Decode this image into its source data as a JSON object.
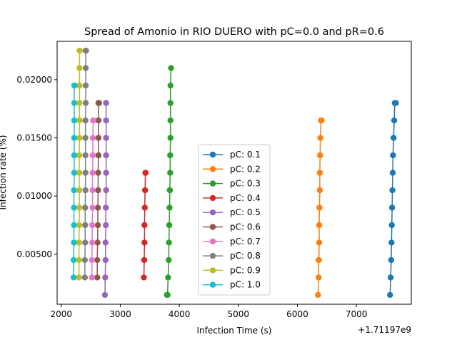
{
  "chart_data": {
    "type": "line",
    "title": "Spread of Amonio in RIO DUERO with pC=0.0 and pR=0.6",
    "xlabel": "Infection Time (s)",
    "ylabel": "Infection rate (%)",
    "x_offset_label": "+1.71197e9",
    "x_ticks": [
      "2000",
      "3000",
      "4000",
      "5000",
      "6000",
      "7000"
    ],
    "y_ticks": [
      "0.00500",
      "0.01000",
      "0.01500",
      "0.02000"
    ],
    "xlim": [
      1711971930,
      1711977930
    ],
    "ylim": [
      0.0007,
      0.0233
    ],
    "grid": false,
    "legend_position": "lower-center",
    "series": [
      {
        "name": "pC: 0.1",
        "color": "#1f77b4",
        "x": [
          1711977570,
          1711977580,
          1711977590,
          1711977595,
          1711977600,
          1711977605,
          1711977610,
          1711977615,
          1711977620,
          1711977630,
          1711977640,
          1711977650,
          1711977660,
          1711977670
        ],
        "y": [
          0.0015,
          0.003,
          0.0045,
          0.006,
          0.0075,
          0.009,
          0.0105,
          0.012,
          0.0135,
          0.015,
          0.0165,
          0.018,
          0.018,
          0.018
        ]
      },
      {
        "name": "pC: 0.2",
        "color": "#ff7f0e",
        "x": [
          1711976350,
          1711976360,
          1711976360,
          1711976365,
          1711976370,
          1711976370,
          1711976375,
          1711976380,
          1711976380,
          1711976385,
          1711976390,
          1711976400,
          1711976410
        ],
        "y": [
          0.0015,
          0.003,
          0.0045,
          0.0045,
          0.006,
          0.0075,
          0.009,
          0.0105,
          0.012,
          0.0135,
          0.015,
          0.0165,
          0.0165
        ]
      },
      {
        "name": "pC: 0.3",
        "color": "#2ca02c",
        "x": [
          1711973790,
          1711973800,
          1711973810,
          1711973820,
          1711973825,
          1711973830,
          1711973835,
          1711973840,
          1711973840,
          1711973845,
          1711973845,
          1711973850,
          1711973850,
          1711973850,
          1711973850,
          1711973860
        ],
        "y": [
          0.0015,
          0.0015,
          0.003,
          0.0045,
          0.006,
          0.0075,
          0.009,
          0.0105,
          0.0105,
          0.012,
          0.0135,
          0.015,
          0.0165,
          0.018,
          0.0195,
          0.021
        ]
      },
      {
        "name": "pC: 0.4",
        "color": "#d62728",
        "x": [
          1711973400,
          1711973405,
          1711973410,
          1711973410,
          1711973415,
          1711973420,
          1711973425,
          1711973430
        ],
        "y": [
          0.003,
          0.0045,
          0.006,
          0.0075,
          0.009,
          0.0105,
          0.012,
          0.012
        ]
      },
      {
        "name": "pC: 0.5",
        "color": "#9467bd",
        "x": [
          1711972740,
          1711972745,
          1711972750,
          1711972750,
          1711972755,
          1711972755,
          1711972760,
          1711972760,
          1711972760,
          1711972760,
          1711972760,
          1711972760,
          1711972760,
          1711972760
        ],
        "y": [
          0.0015,
          0.003,
          0.0045,
          0.006,
          0.0075,
          0.009,
          0.0105,
          0.012,
          0.0135,
          0.015,
          0.0165,
          0.018,
          0.018,
          0.018
        ]
      },
      {
        "name": "pC: 0.6",
        "color": "#8c564b",
        "x": [
          1711972610,
          1711972610,
          1711972615,
          1711972620,
          1711972620,
          1711972625,
          1711972625,
          1711972630,
          1711972630,
          1711972630,
          1711972630,
          1711972640
        ],
        "y": [
          0.003,
          0.0045,
          0.006,
          0.0075,
          0.009,
          0.0105,
          0.012,
          0.0135,
          0.015,
          0.0165,
          0.018,
          0.018
        ]
      },
      {
        "name": "pC: 0.7",
        "color": "#e377c2",
        "x": [
          1711972520,
          1711972520,
          1711972525,
          1711972525,
          1711972530,
          1711972530,
          1711972530,
          1711972535,
          1711972535,
          1711972540,
          1711972540
        ],
        "y": [
          0.003,
          0.0045,
          0.006,
          0.0075,
          0.009,
          0.0105,
          0.012,
          0.0135,
          0.015,
          0.0165,
          0.0165
        ]
      },
      {
        "name": "pC: 0.8",
        "color": "#7f7f7f",
        "x": [
          1711972400,
          1711972400,
          1711972405,
          1711972405,
          1711972405,
          1711972410,
          1711972410,
          1711972410,
          1711972410,
          1711972410,
          1711972415,
          1711972415,
          1711972415,
          1711972415,
          1711972420
        ],
        "y": [
          0.003,
          0.0045,
          0.006,
          0.0075,
          0.009,
          0.0105,
          0.012,
          0.0135,
          0.015,
          0.0165,
          0.018,
          0.0195,
          0.021,
          0.0225,
          0.0225
        ]
      },
      {
        "name": "pC: 0.9",
        "color": "#bcbd22",
        "x": [
          1711972300,
          1711972300,
          1711972300,
          1711972305,
          1711972305,
          1711972305,
          1711972305,
          1711972305,
          1711972310,
          1711972310,
          1711972310,
          1711972310,
          1711972310,
          1711972310,
          1711972315
        ],
        "y": [
          0.003,
          0.0045,
          0.006,
          0.0075,
          0.009,
          0.0105,
          0.012,
          0.0135,
          0.015,
          0.0165,
          0.018,
          0.0195,
          0.021,
          0.0225,
          0.0225
        ]
      },
      {
        "name": "pC: 1.0",
        "color": "#17becf",
        "x": [
          1711972210,
          1711972210,
          1711972215,
          1711972215,
          1711972215,
          1711972215,
          1711972220,
          1711972220,
          1711972220,
          1711972220,
          1711972220,
          1711972220,
          1711972225
        ],
        "y": [
          0.003,
          0.0045,
          0.006,
          0.0075,
          0.009,
          0.0105,
          0.012,
          0.0135,
          0.015,
          0.0165,
          0.018,
          0.0195,
          0.0195
        ]
      }
    ]
  }
}
